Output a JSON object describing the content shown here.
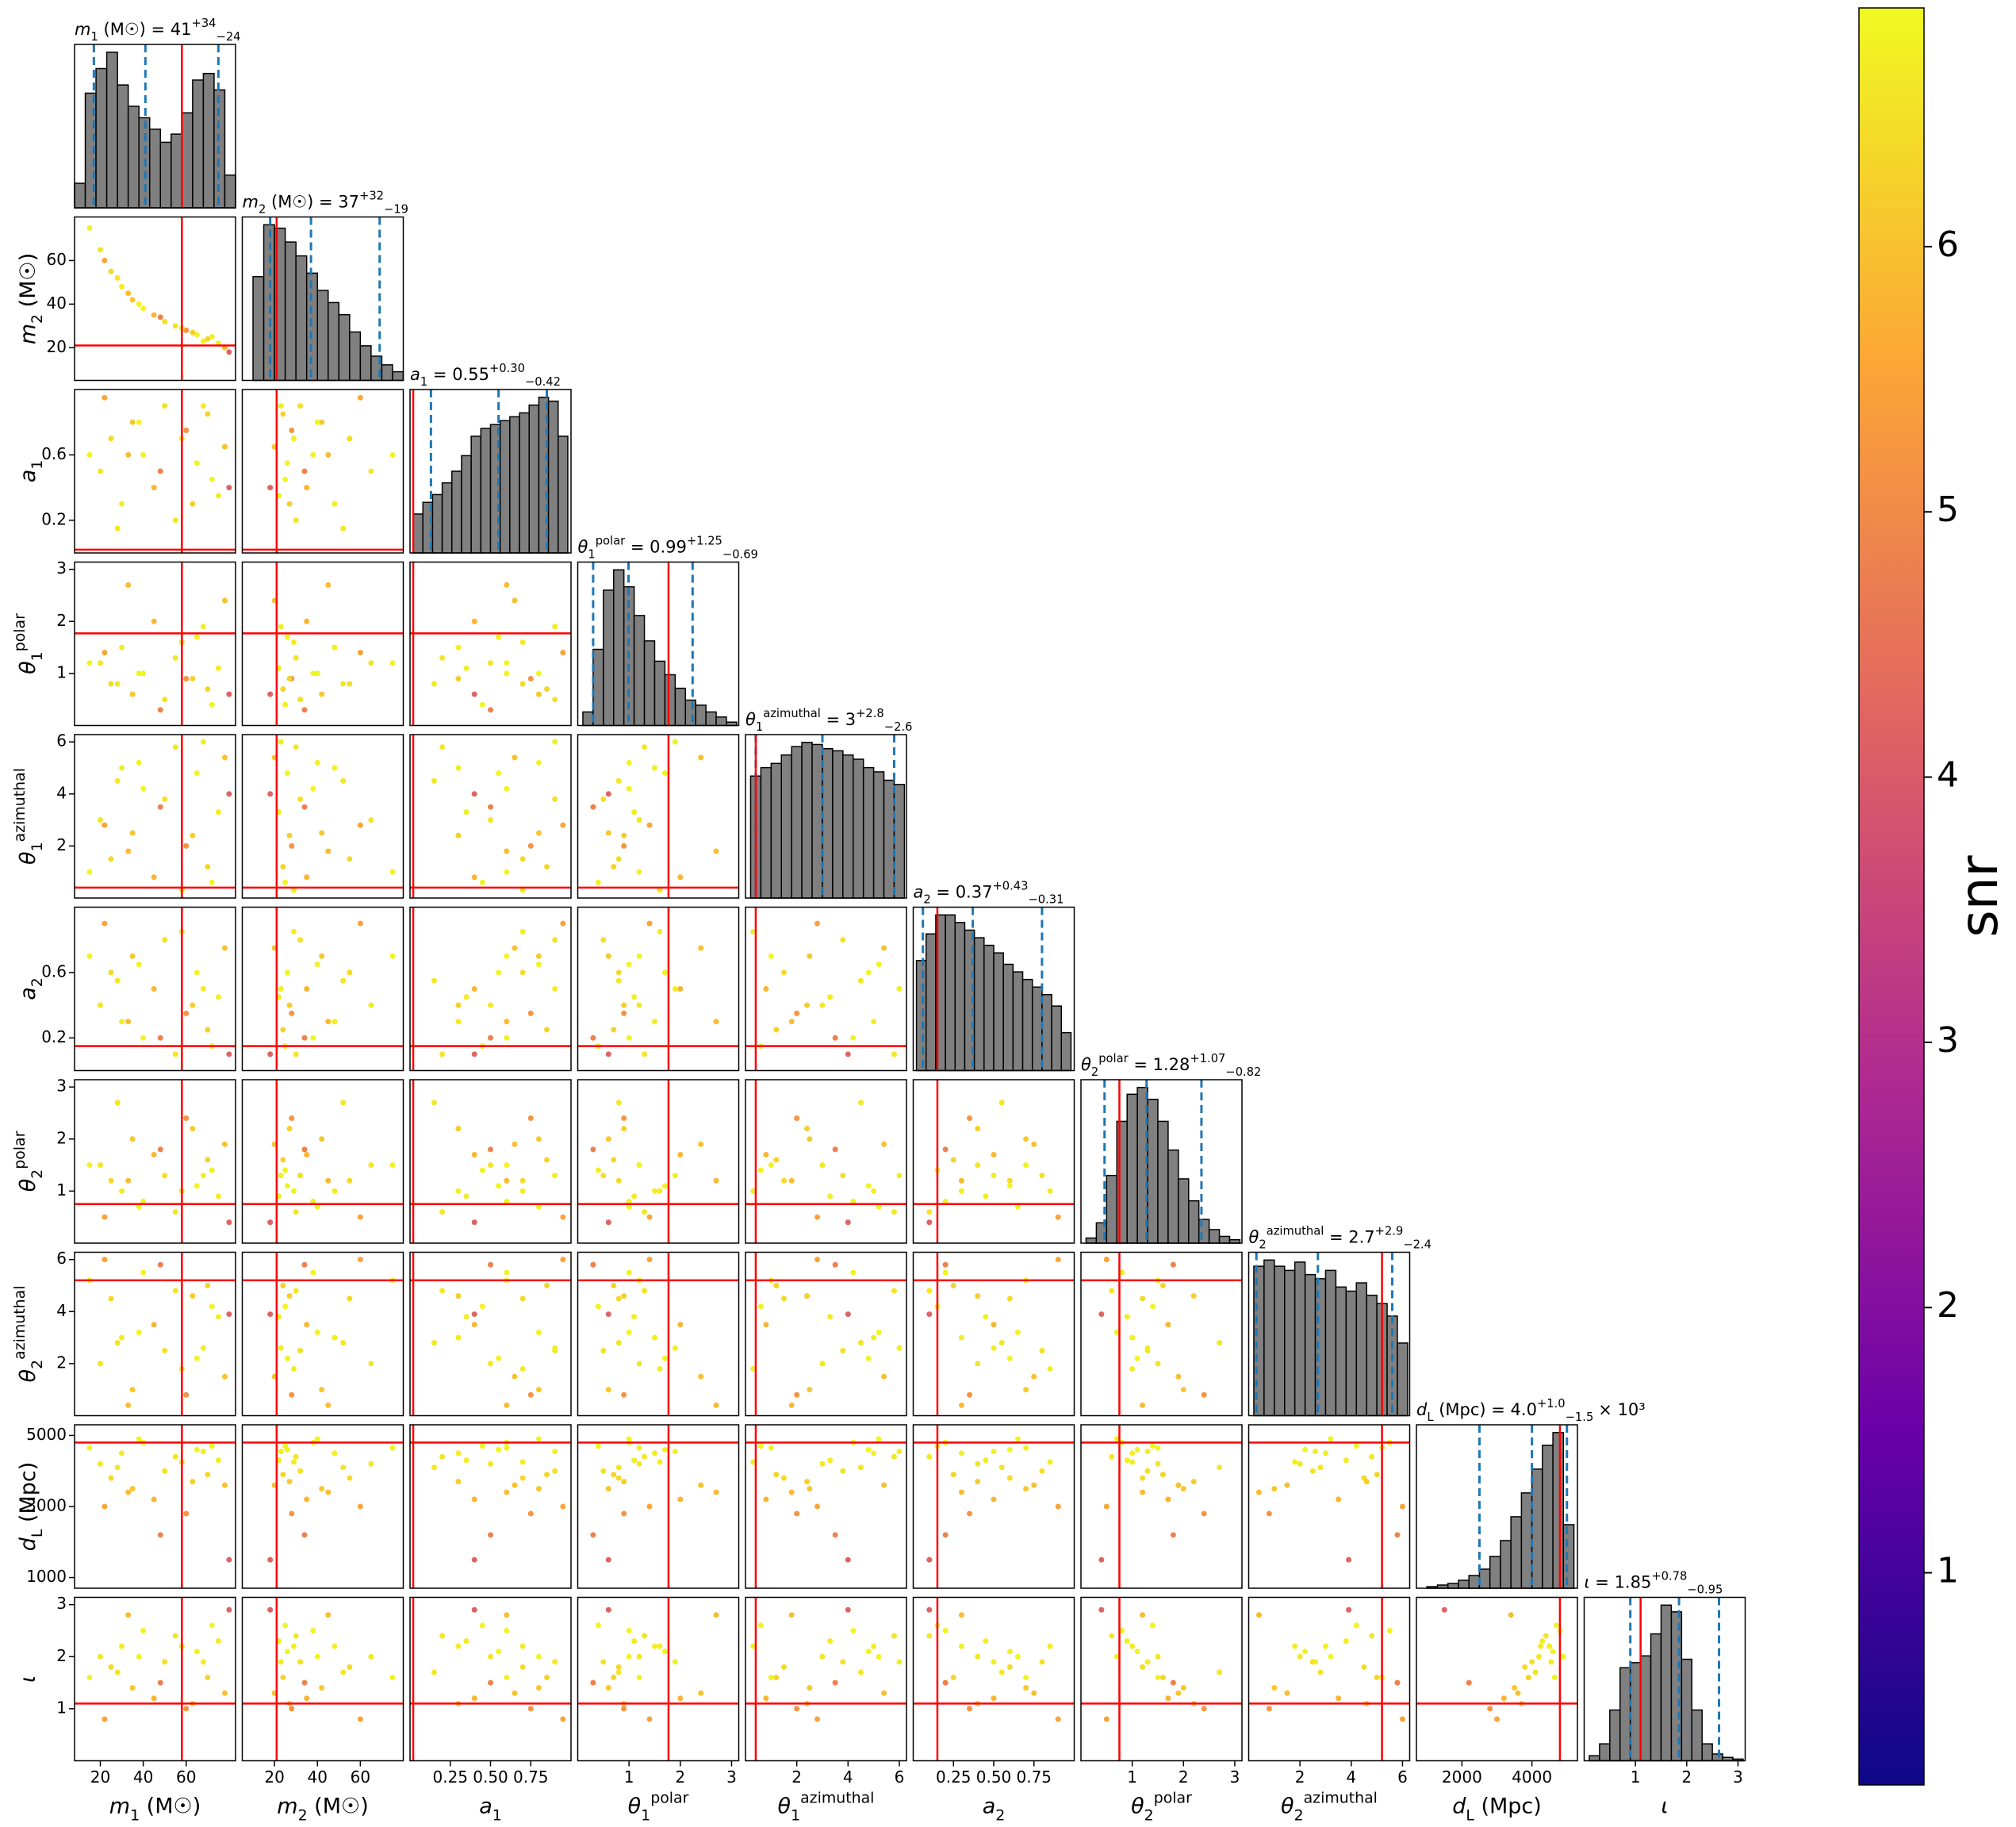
{
  "chart_data": {
    "type": "corner",
    "title_separator": " = ",
    "colors": {
      "hist": "#808080",
      "truth": "#ff0000",
      "quantile": "#1f77b4"
    },
    "parameters": [
      {
        "label": {
          "main": "m",
          "sub": "1",
          "rest": " (M☉)"
        },
        "lim": [
          8,
          83
        ],
        "xticks": [
          20,
          40,
          60
        ],
        "yticks": [
          20,
          40,
          60
        ],
        "truth": 58,
        "estimate": {
          "value": 41,
          "upper": {
            "value": 34,
            "label": "+34"
          },
          "lower": {
            "value": 24,
            "label": "−24"
          }
        },
        "bins": [
          8,
          13,
          18,
          23,
          28,
          33,
          38,
          43,
          48,
          53,
          58,
          63,
          68,
          73,
          78,
          83
        ],
        "counts": [
          15,
          70,
          85,
          95,
          75,
          62,
          55,
          48,
          40,
          45,
          58,
          78,
          82,
          72,
          20
        ]
      },
      {
        "label": {
          "main": "m",
          "sub": "2",
          "rest": " (M☉)"
        },
        "lim": [
          5,
          80
        ],
        "xticks": [
          20,
          40,
          60
        ],
        "yticks": [
          20,
          40,
          60
        ],
        "truth": 21,
        "estimate": {
          "value": 37,
          "upper": {
            "value": 32,
            "label": "+32"
          },
          "lower": {
            "value": 19,
            "label": "−19"
          }
        },
        "bins": [
          5,
          10,
          15,
          20,
          25,
          30,
          35,
          40,
          45,
          50,
          55,
          60,
          65,
          70,
          75,
          80
        ],
        "counts": [
          0,
          60,
          90,
          88,
          80,
          72,
          62,
          52,
          45,
          38,
          28,
          20,
          14,
          9,
          5
        ]
      },
      {
        "label": {
          "main": "a",
          "sub": "1"
        },
        "lim": [
          0,
          1
        ],
        "xticks": [
          0.25,
          {
            "value": 0.5,
            "label": "0.50"
          },
          0.75
        ],
        "yticks": [
          0.2,
          0.6
        ],
        "truth": 0.02,
        "estimate": {
          "value": 0.55,
          "upper": {
            "value": 0.3,
            "label": "+0.30"
          },
          "lower": {
            "value": 0.42,
            "label": "−0.42"
          }
        },
        "bins": [
          0.02,
          0.08,
          0.14,
          0.2,
          0.26,
          0.32,
          0.38,
          0.44,
          0.5,
          0.56,
          0.62,
          0.68,
          0.74,
          0.8,
          0.86,
          0.92,
          0.98
        ],
        "counts": [
          20,
          26,
          30,
          36,
          42,
          50,
          60,
          64,
          66,
          68,
          70,
          72,
          76,
          80,
          78,
          60
        ]
      },
      {
        "label": {
          "main": "θ",
          "sub": "1",
          "sup": "polar"
        },
        "lim": [
          0,
          3.14
        ],
        "xticks": [
          1,
          2,
          3
        ],
        "yticks": [
          1,
          2,
          3
        ],
        "truth": 1.77,
        "estimate": {
          "value": 0.99,
          "upper": {
            "value": 1.25,
            "label": "+1.25"
          },
          "lower": {
            "value": 0.69,
            "label": "−0.69"
          }
        },
        "bins": [
          0.1,
          0.3,
          0.5,
          0.7,
          0.9,
          1.1,
          1.3,
          1.5,
          1.7,
          1.9,
          2.1,
          2.3,
          2.5,
          2.7,
          2.9,
          3.1
        ],
        "counts": [
          8,
          45,
          80,
          92,
          82,
          65,
          50,
          38,
          30,
          22,
          15,
          12,
          8,
          5,
          2
        ]
      },
      {
        "label": {
          "main": "θ",
          "sub": "1",
          "sup": "azimuthal"
        },
        "lim": [
          0,
          6.28
        ],
        "xticks": [
          2,
          4,
          6
        ],
        "yticks": [
          2,
          4,
          6
        ],
        "truth": 0.4,
        "estimate": {
          "value": 3,
          "upper": {
            "value": 2.8,
            "label": "+2.8"
          },
          "lower": {
            "value": 2.6,
            "label": "−2.6"
          }
        },
        "bins": [
          0.2,
          0.6,
          1.0,
          1.4,
          1.8,
          2.2,
          2.6,
          3.0,
          3.4,
          3.8,
          4.2,
          4.6,
          5.0,
          5.4,
          5.8,
          6.2
        ],
        "counts": [
          58,
          62,
          64,
          68,
          72,
          74,
          73,
          71,
          70,
          68,
          66,
          62,
          60,
          56,
          54
        ]
      },
      {
        "label": {
          "main": "a",
          "sub": "2"
        },
        "lim": [
          0,
          1
        ],
        "xticks": [
          0.25,
          {
            "value": 0.5,
            "label": "0.50"
          },
          0.75
        ],
        "yticks": [
          0.2,
          0.6
        ],
        "truth": 0.15,
        "estimate": {
          "value": 0.37,
          "upper": {
            "value": 0.43,
            "label": "+0.43"
          },
          "lower": {
            "value": 0.31,
            "label": "−0.31"
          }
        },
        "bins": [
          0.02,
          0.08,
          0.14,
          0.2,
          0.26,
          0.32,
          0.38,
          0.44,
          0.5,
          0.56,
          0.62,
          0.68,
          0.74,
          0.8,
          0.86,
          0.92,
          0.98
        ],
        "counts": [
          58,
          72,
          82,
          82,
          78,
          74,
          70,
          66,
          62,
          56,
          52,
          48,
          44,
          40,
          34,
          20
        ]
      },
      {
        "label": {
          "main": "θ",
          "sub": "2",
          "sup": "polar"
        },
        "lim": [
          0,
          3.14
        ],
        "xticks": [
          1,
          2,
          3
        ],
        "yticks": [
          1,
          2,
          3
        ],
        "truth": 0.75,
        "estimate": {
          "value": 1.28,
          "upper": {
            "value": 1.07,
            "label": "+1.07"
          },
          "lower": {
            "value": 0.82,
            "label": "−0.82"
          }
        },
        "bins": [
          0.1,
          0.3,
          0.5,
          0.7,
          0.9,
          1.1,
          1.3,
          1.5,
          1.7,
          1.9,
          2.1,
          2.3,
          2.5,
          2.7,
          2.9,
          3.1
        ],
        "counts": [
          3,
          12,
          40,
          72,
          88,
          92,
          85,
          72,
          55,
          38,
          25,
          14,
          8,
          4,
          2
        ]
      },
      {
        "label": {
          "main": "θ",
          "sub": "2",
          "sup": "azimuthal"
        },
        "lim": [
          0,
          6.28
        ],
        "xticks": [
          2,
          4,
          6
        ],
        "yticks": [
          2,
          4,
          6
        ],
        "truth": 5.2,
        "estimate": {
          "value": 2.7,
          "upper": {
            "value": 2.9,
            "label": "+2.9"
          },
          "lower": {
            "value": 2.4,
            "label": "−2.4"
          }
        },
        "bins": [
          0.2,
          0.6,
          1.0,
          1.4,
          1.8,
          2.2,
          2.6,
          3.0,
          3.4,
          3.8,
          4.2,
          4.6,
          5.0,
          5.4,
          5.8,
          6.2
        ],
        "counts": [
          72,
          75,
          72,
          70,
          74,
          68,
          66,
          70,
          62,
          60,
          64,
          58,
          54,
          48,
          35
        ]
      },
      {
        "label": {
          "main": "d",
          "sub": "L",
          "rest": " (Mpc)"
        },
        "lim": [
          700,
          5300
        ],
        "xticks": [
          2000,
          4000
        ],
        "yticks": [
          1000,
          3000,
          5000
        ],
        "truth": 4800,
        "estimate": {
          "value": {
            "value": 4000,
            "label": "4.0"
          },
          "upper": {
            "value": 1000,
            "label": "+1.0"
          },
          "lower": {
            "value": 1500,
            "label": "−1.5"
          },
          "suffix": "× 10³"
        },
        "bins": [
          1000,
          1300,
          1600,
          1900,
          2200,
          2500,
          2800,
          3100,
          3400,
          3700,
          4000,
          4300,
          4600,
          4900,
          5200
        ],
        "counts": [
          1,
          2,
          3,
          5,
          8,
          12,
          20,
          30,
          45,
          60,
          75,
          90,
          98,
          40
        ]
      },
      {
        "label": {
          "main": "ι"
        },
        "lim": [
          0,
          3.14
        ],
        "xticks": [
          1,
          2,
          3
        ],
        "yticks": [
          1,
          2,
          3
        ],
        "truth": 1.1,
        "estimate": {
          "value": 1.85,
          "upper": {
            "value": 0.78,
            "label": "+0.78"
          },
          "lower": {
            "value": 0.95,
            "label": "−0.95"
          }
        },
        "bins": [
          0.1,
          0.3,
          0.5,
          0.7,
          0.9,
          1.1,
          1.3,
          1.5,
          1.7,
          1.9,
          2.1,
          2.3,
          2.5,
          2.7,
          2.9,
          3.1
        ],
        "counts": [
          3,
          10,
          30,
          55,
          58,
          62,
          75,
          92,
          88,
          60,
          30,
          10,
          4,
          2,
          1
        ]
      }
    ],
    "samples": [
      [
        20,
        65,
        0.5,
        1.2,
        3.0,
        0.4,
        1.5,
        2.0,
        4200,
        2.0
      ],
      [
        25,
        55,
        0.7,
        0.8,
        1.5,
        0.6,
        1.2,
        4.5,
        3800,
        1.8
      ],
      [
        30,
        48,
        0.3,
        1.5,
        5.0,
        0.3,
        1.0,
        3.0,
        4500,
        2.2
      ],
      [
        35,
        42,
        0.8,
        0.6,
        2.5,
        0.7,
        2.0,
        1.0,
        3500,
        1.4
      ],
      [
        40,
        38,
        0.6,
        1.0,
        4.2,
        0.2,
        0.8,
        5.5,
        4800,
        2.5
      ],
      [
        45,
        35,
        0.4,
        2.0,
        0.8,
        0.5,
        1.7,
        3.5,
        3200,
        1.2
      ],
      [
        50,
        32,
        0.9,
        0.5,
        3.8,
        0.8,
        1.3,
        2.5,
        4000,
        1.9
      ],
      [
        55,
        30,
        0.2,
        1.3,
        5.8,
        0.1,
        0.6,
        4.8,
        4400,
        2.4
      ],
      [
        60,
        28,
        0.75,
        0.9,
        2.0,
        0.35,
        2.4,
        0.8,
        2800,
        1.0
      ],
      [
        65,
        26,
        0.55,
        1.7,
        4.8,
        0.6,
        1.1,
        2.2,
        4600,
        2.1
      ],
      [
        70,
        24,
        0.85,
        0.7,
        1.2,
        0.25,
        1.6,
        5.0,
        3900,
        1.6
      ],
      [
        75,
        22,
        0.35,
        1.1,
        3.3,
        0.45,
        0.9,
        3.8,
        4300,
        2.3
      ],
      [
        78,
        20,
        0.65,
        2.4,
        5.4,
        0.75,
        1.9,
        1.5,
        3600,
        1.3
      ],
      [
        72,
        25,
        0.45,
        0.4,
        0.6,
        0.15,
        1.4,
        4.2,
        4700,
        2.6
      ],
      [
        22,
        60,
        0.95,
        1.4,
        2.8,
        0.9,
        0.5,
        6.0,
        3000,
        0.8
      ],
      [
        28,
        52,
        0.15,
        0.8,
        4.5,
        0.55,
        2.7,
        2.8,
        4100,
        1.7
      ],
      [
        33,
        45,
        0.6,
        2.7,
        1.8,
        0.3,
        1.2,
        0.4,
        3400,
        2.8
      ],
      [
        38,
        40,
        0.8,
        1.0,
        5.2,
        0.65,
        0.7,
        3.2,
        4900,
        2.0
      ],
      [
        48,
        34,
        0.5,
        0.3,
        3.5,
        0.2,
        1.8,
        5.8,
        2200,
        1.5
      ],
      [
        58,
        29,
        0.7,
        1.6,
        0.3,
        0.85,
        1.0,
        1.8,
        4250,
        2.2
      ],
      [
        63,
        27,
        0.3,
        0.9,
        2.4,
        0.4,
        2.2,
        4.6,
        3700,
        1.1
      ],
      [
        68,
        23,
        0.9,
        1.9,
        6.0,
        0.5,
        1.3,
        2.6,
        4550,
        1.9
      ],
      [
        80,
        18,
        0.4,
        0.6,
        4.0,
        0.1,
        0.4,
        3.9,
        1500,
        2.9
      ],
      [
        15,
        75,
        0.6,
        1.2,
        1.0,
        0.7,
        1.5,
        5.2,
        4650,
        1.6
      ]
    ],
    "snr": [
      6.6,
      6.4,
      6.7,
      6.1,
      6.8,
      5.8,
      6.5,
      6.6,
      5.2,
      6.8,
      6.3,
      6.7,
      6.0,
      6.8,
      5.5,
      6.6,
      5.9,
      6.8,
      4.8,
      6.7,
      6.2,
      6.7,
      4.2,
      6.8
    ],
    "colorbar": {
      "label": "snr",
      "lim": [
        0.2,
        6.9
      ],
      "ticks": [
        1,
        2,
        3,
        4,
        5,
        6
      ],
      "colormap": [
        "#0d0887",
        "#6a00a8",
        "#b12a90",
        "#e16462",
        "#fca636",
        "#f0f921"
      ]
    }
  }
}
